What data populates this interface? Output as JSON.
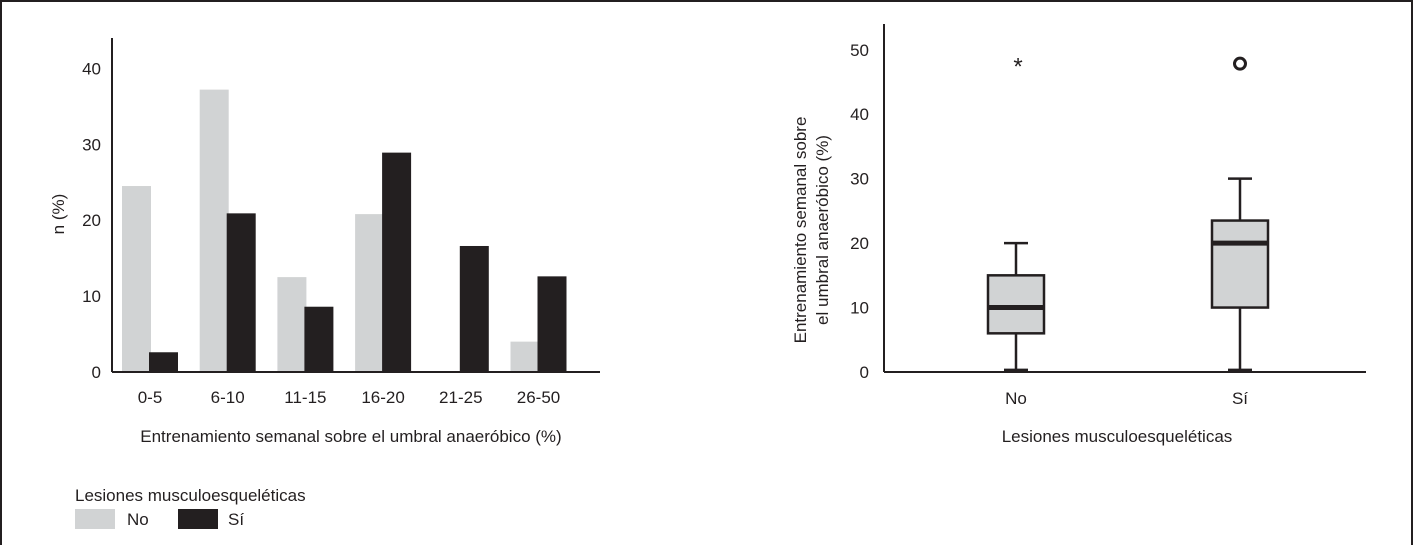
{
  "colors": {
    "no": "#d1d3d4",
    "si": "#231f20",
    "text": "#231f20",
    "frame": "#231f20"
  },
  "chart_data": [
    {
      "type": "bar",
      "categories": [
        "0-5",
        "6-10",
        "11-15",
        "16-20",
        "21-25",
        "26-50"
      ],
      "series": [
        {
          "name": "No",
          "values": [
            24.5,
            37.2,
            12.5,
            20.8,
            0,
            4.0
          ]
        },
        {
          "name": "Sí",
          "values": [
            2.6,
            20.9,
            8.6,
            28.9,
            16.6,
            12.6
          ]
        }
      ],
      "xlabel": "Entrenamiento semanal sobre el umbral anaeróbico (%)",
      "ylabel": "n (%)",
      "ylim": [
        0,
        44
      ],
      "yticks": [
        "0",
        "10",
        "20",
        "30",
        "40"
      ],
      "legend": {
        "title": "Lesiones musculoesqueléticas",
        "entries": [
          "No",
          "Sí"
        ],
        "placement": "bottom-left"
      },
      "grid": false
    },
    {
      "type": "box",
      "categories": [
        "No",
        "Sí"
      ],
      "boxes": [
        {
          "name": "No",
          "min": 0.3,
          "q1": 6,
          "median": 10,
          "q3": 15,
          "max": 20,
          "outliers": [
            {
              "value": 48,
              "marker": "*"
            }
          ]
        },
        {
          "name": "Sí",
          "min": 0.3,
          "q1": 10,
          "median": 20,
          "q3": 23.5,
          "max": 30,
          "outliers": [
            {
              "value": 48,
              "marker": "o"
            }
          ]
        }
      ],
      "xlabel": "Lesiones musculoesqueléticas",
      "ylabel_lines": [
        "Entrenamiento semanal sobre",
        "el umbral anaeróbico (%)"
      ],
      "ylim": [
        0,
        54
      ],
      "yticks": [
        "0",
        "10",
        "20",
        "30",
        "40",
        "50"
      ],
      "grid": false
    }
  ]
}
